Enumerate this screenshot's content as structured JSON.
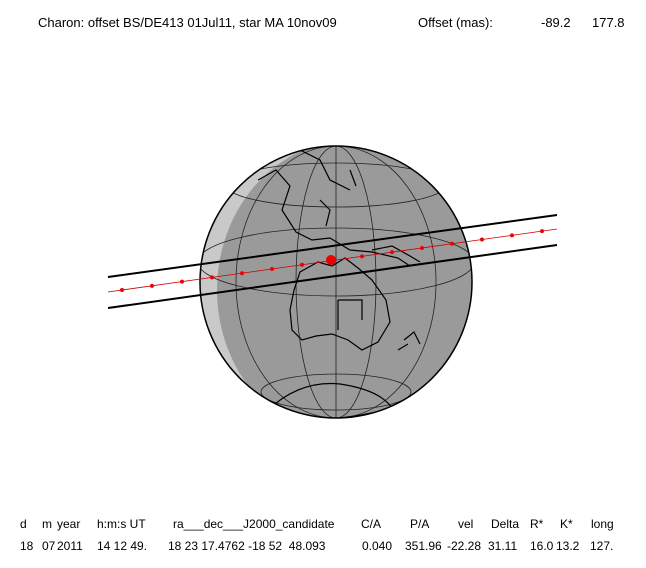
{
  "header": {
    "title": "Charon: offset BS/DE413 01Jul11, star MA 10nov09",
    "offset_label": "Offset (mas):",
    "offset_x": "-89.2",
    "offset_y": "177.8"
  },
  "table": {
    "columns": [
      "d",
      "m",
      "year",
      "h:m:s UT",
      "ra___dec___J2000_candidate",
      "C/A",
      "P/A",
      "vel",
      "Delta",
      "R*",
      "K*",
      "long"
    ],
    "rows": [
      [
        "18",
        "07",
        "2011",
        "14 12 49.",
        "18 23 17.4762 -18 52  48.093",
        "0.040",
        "351.96",
        "-22.28",
        "31.11",
        "16.0",
        "13.2",
        "127."
      ]
    ]
  }
}
